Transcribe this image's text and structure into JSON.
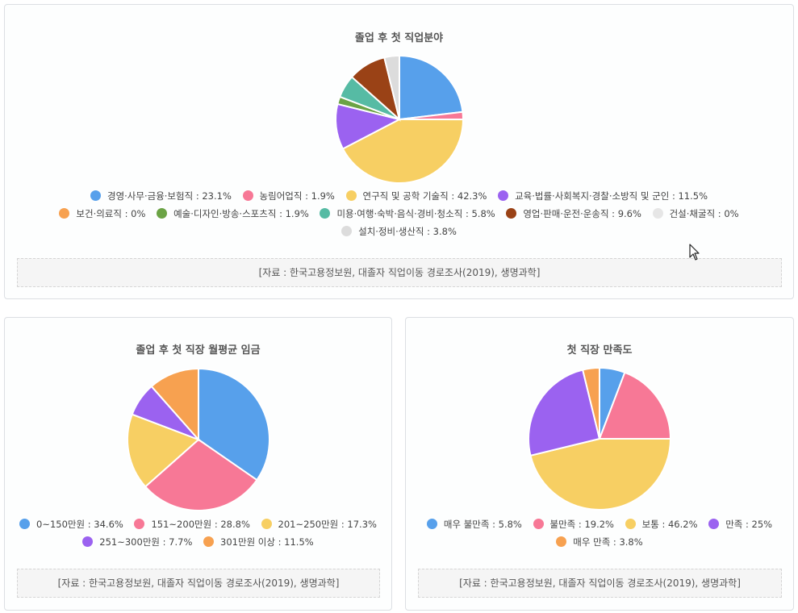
{
  "colors": {
    "blue": "#57a0eb",
    "pink": "#f77896",
    "yellow": "#f7cf63",
    "purple": "#9b62f0",
    "orange": "#f7a150",
    "green": "#6ba345",
    "teal": "#56bba4",
    "brown": "#9a4216",
    "lightgray": "#e1e1e1",
    "gray": "#dedede"
  },
  "source_text": "[자료 : 한국고용정보원, 대졸자 직업이동 경로조사(2019), 생명과학]",
  "chart_data": [
    {
      "type": "pie",
      "title": "졸업 후 첫 직업분야",
      "categories": [
        "경영·사무·금융·보험직",
        "농림어업직",
        "연구직 및 공학 기술직",
        "교육·법률·사회복지·경찰·소방직 및 군인",
        "보건·의료직",
        "예술·디자인·방송·스포츠직",
        "미용·여행·숙박·음식·경비·청소직",
        "영업·판매·운전·운송직",
        "건설·채굴직",
        "설치·정비·생산직"
      ],
      "values": [
        23.1,
        1.9,
        42.3,
        11.5,
        0,
        1.9,
        5.8,
        9.6,
        0,
        3.8
      ],
      "colors": [
        "#57a0eb",
        "#f77896",
        "#f7cf63",
        "#9b62f0",
        "#f7a150",
        "#6ba345",
        "#56bba4",
        "#9a4216",
        "#e6e6e6",
        "#dcdcdc"
      ],
      "legend_labels": [
        "경영·사무·금융·보험직 : 23.1%",
        "농림어업직 : 1.9%",
        "연구직 및 공학 기술직 : 42.3%",
        "교육·법률·사회복지·경찰·소방직 및 군인 : 11.5%",
        "보건·의료직 : 0%",
        "예술·디자인·방송·스포츠직 : 1.9%",
        "미용·여행·숙박·음식·경비·청소직 : 5.8%",
        "영업·판매·운전·운송직 : 9.6%",
        "건설·채굴직 : 0%",
        "설치·정비·생산직 : 3.8%"
      ],
      "legend_placement": "bottom"
    },
    {
      "type": "pie",
      "title": "졸업 후 첫 직장 월평균 임금",
      "categories": [
        "0~150만원",
        "151~200만원",
        "201~250만원",
        "251~300만원",
        "301만원 이상"
      ],
      "values": [
        34.6,
        28.8,
        17.3,
        7.7,
        11.5
      ],
      "colors": [
        "#57a0eb",
        "#f77896",
        "#f7cf63",
        "#9b62f0",
        "#f7a150"
      ],
      "legend_labels": [
        "0~150만원 : 34.6%",
        "151~200만원 : 28.8%",
        "201~250만원 : 17.3%",
        "251~300만원 : 7.7%",
        "301만원 이상 : 11.5%"
      ],
      "legend_placement": "bottom"
    },
    {
      "type": "pie",
      "title": "첫 직장 만족도",
      "categories": [
        "매우 불만족",
        "불만족",
        "보통",
        "만족",
        "매우 만족"
      ],
      "values": [
        5.8,
        19.2,
        46.2,
        25,
        3.8
      ],
      "colors": [
        "#57a0eb",
        "#f77896",
        "#f7cf63",
        "#9b62f0",
        "#f7a150"
      ],
      "legend_labels": [
        "매우 불만족 : 5.8%",
        "불만족 : 19.2%",
        "보통 : 46.2%",
        "만족 : 25%",
        "매우 만족 : 3.8%"
      ],
      "legend_placement": "bottom"
    }
  ]
}
